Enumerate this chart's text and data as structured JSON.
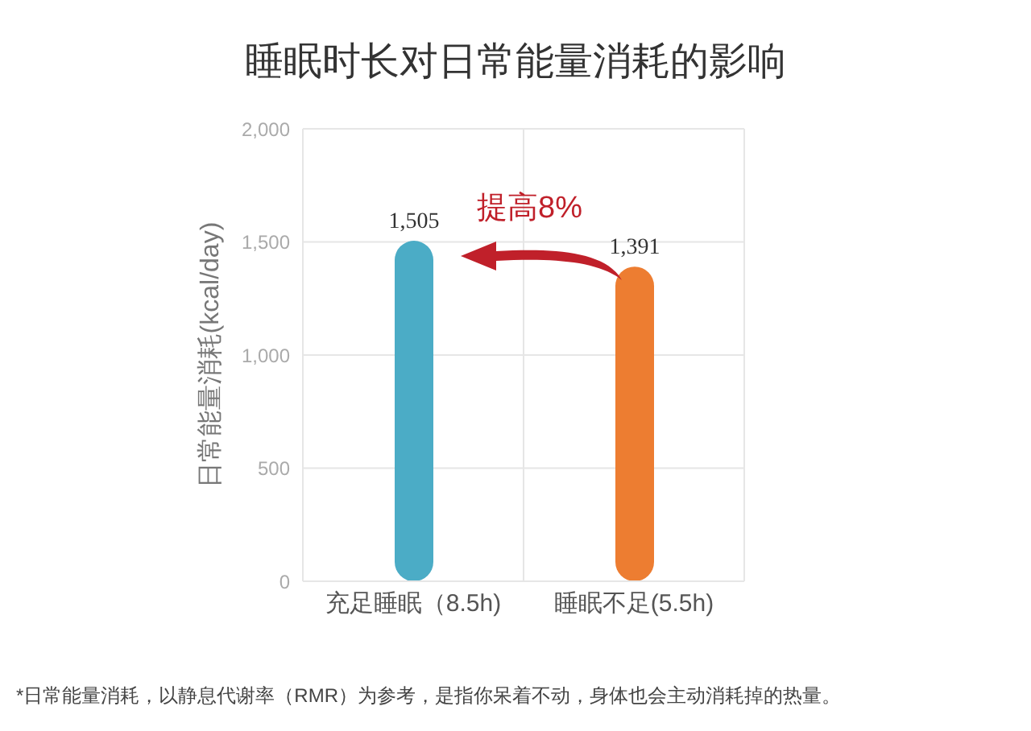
{
  "chart_data": {
    "type": "bar",
    "title": "睡眠时长对日常能量消耗的影响",
    "ylabel": "日常能量消耗(kcal/day)",
    "categories": [
      "充足睡眠（8.5h)",
      "睡眠不足(5.5h)"
    ],
    "values": [
      1505,
      1391
    ],
    "colors": [
      "#4bacc6",
      "#ed7d31"
    ],
    "ylim": [
      0,
      2000
    ],
    "yticks": [
      {
        "value": 0,
        "label": "0"
      },
      {
        "value": 500,
        "label": "500"
      },
      {
        "value": 1000,
        "label": "1,000"
      },
      {
        "value": 1500,
        "label": "1,500"
      },
      {
        "value": 2000,
        "label": "2,000"
      }
    ],
    "value_labels": [
      "1,505",
      "1,391"
    ],
    "grid": true,
    "annotations": [
      "提高8%",
      "*日常能量消耗，以静息代谢率（RMR）为参考，是指你呆着不动，身体也会主动消耗掉的热量。"
    ]
  }
}
